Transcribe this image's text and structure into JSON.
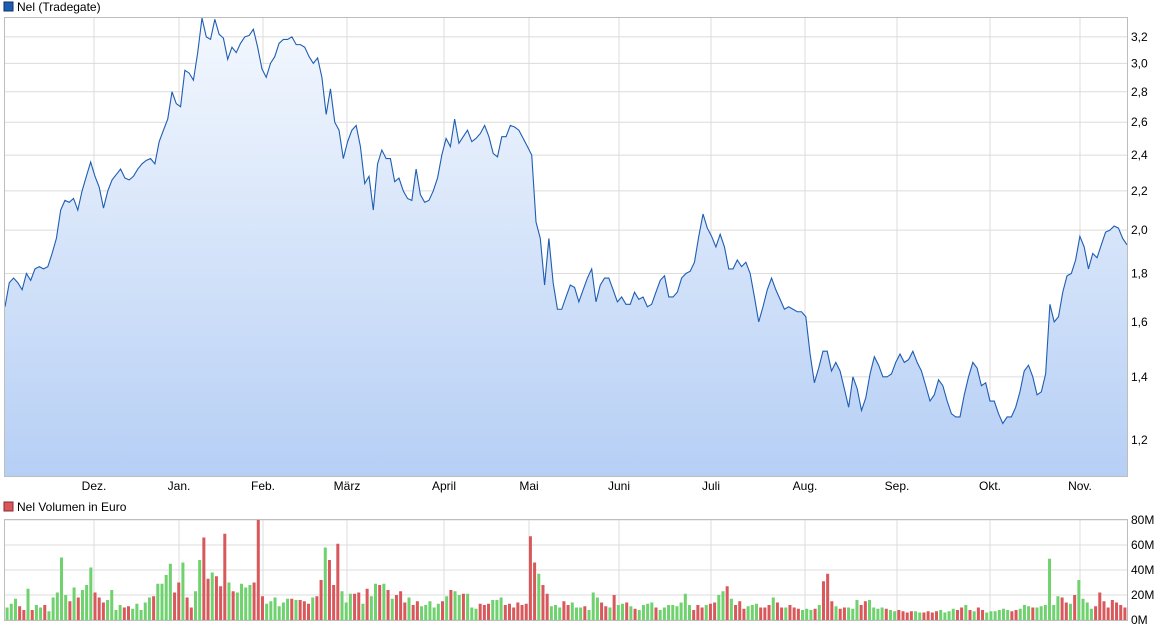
{
  "chart_data": [
    {
      "type": "area",
      "legend": "Nel (Tradegate)",
      "x_ticks": [
        "Dez.",
        "Jan.",
        "Feb.",
        "März",
        "April",
        "Mai",
        "Juni",
        "Juli",
        "Aug.",
        "Sep.",
        "Okt.",
        "Nov."
      ],
      "y_ticks": [
        "1,2",
        "1,4",
        "1,6",
        "1,8",
        "2,0",
        "2,2",
        "2,4",
        "2,6",
        "2,8",
        "3,0",
        "3,2"
      ],
      "y_scale": "log",
      "ylim": [
        1.1,
        3.35
      ],
      "grid": true,
      "line_color": "#1f5db3",
      "fill_top_color": "#f4f8fe",
      "fill_bottom_color": "#b6cff5",
      "series": [
        {
          "values": [
            1.66,
            1.76,
            1.78,
            1.76,
            1.73,
            1.8,
            1.77,
            1.82,
            1.83,
            1.82,
            1.83,
            1.89,
            1.96,
            2.1,
            2.15,
            2.14,
            2.16,
            2.1,
            2.2,
            2.28,
            2.36,
            2.28,
            2.22,
            2.11,
            2.2,
            2.26,
            2.29,
            2.32,
            2.27,
            2.26,
            2.28,
            2.32,
            2.35,
            2.37,
            2.38,
            2.35,
            2.48,
            2.55,
            2.62,
            2.8,
            2.72,
            2.7,
            2.95,
            2.93,
            2.88,
            3.08,
            3.35,
            3.2,
            3.18,
            3.34,
            3.22,
            3.19,
            3.03,
            3.12,
            3.08,
            3.15,
            3.2,
            3.21,
            3.26,
            3.12,
            2.96,
            2.9,
            3.0,
            3.05,
            3.15,
            3.18,
            3.18,
            3.2,
            3.14,
            3.14,
            3.12,
            3.05,
            3.0,
            3.04,
            2.9,
            2.65,
            2.82,
            2.6,
            2.55,
            2.38,
            2.48,
            2.55,
            2.58,
            2.45,
            2.24,
            2.28,
            2.1,
            2.35,
            2.43,
            2.38,
            2.38,
            2.25,
            2.27,
            2.2,
            2.16,
            2.15,
            2.32,
            2.18,
            2.14,
            2.15,
            2.2,
            2.27,
            2.4,
            2.5,
            2.45,
            2.62,
            2.47,
            2.51,
            2.55,
            2.48,
            2.5,
            2.53,
            2.58,
            2.51,
            2.41,
            2.39,
            2.51,
            2.51,
            2.58,
            2.57,
            2.55,
            2.5,
            2.45,
            2.4,
            2.04,
            1.96,
            1.75,
            1.96,
            1.76,
            1.65,
            1.65,
            1.7,
            1.75,
            1.74,
            1.68,
            1.73,
            1.78,
            1.82,
            1.68,
            1.75,
            1.78,
            1.78,
            1.73,
            1.68,
            1.7,
            1.67,
            1.67,
            1.72,
            1.69,
            1.7,
            1.66,
            1.67,
            1.72,
            1.77,
            1.79,
            1.7,
            1.7,
            1.72,
            1.78,
            1.8,
            1.81,
            1.85,
            1.97,
            2.08,
            2.01,
            1.97,
            1.92,
            1.98,
            1.92,
            1.82,
            1.82,
            1.86,
            1.83,
            1.85,
            1.8,
            1.7,
            1.6,
            1.66,
            1.73,
            1.78,
            1.73,
            1.69,
            1.65,
            1.66,
            1.65,
            1.64,
            1.64,
            1.62,
            1.48,
            1.38,
            1.43,
            1.49,
            1.49,
            1.42,
            1.45,
            1.42,
            1.36,
            1.3,
            1.4,
            1.36,
            1.29,
            1.33,
            1.41,
            1.47,
            1.44,
            1.4,
            1.4,
            1.41,
            1.45,
            1.48,
            1.45,
            1.46,
            1.49,
            1.45,
            1.42,
            1.37,
            1.32,
            1.34,
            1.39,
            1.37,
            1.32,
            1.28,
            1.27,
            1.27,
            1.34,
            1.4,
            1.45,
            1.43,
            1.37,
            1.38,
            1.32,
            1.32,
            1.28,
            1.25,
            1.27,
            1.27,
            1.3,
            1.35,
            1.42,
            1.44,
            1.4,
            1.34,
            1.35,
            1.41,
            1.67,
            1.6,
            1.62,
            1.72,
            1.79,
            1.8,
            1.86,
            1.97,
            1.92,
            1.82,
            1.89,
            1.87,
            1.93,
            1.99,
            2.0,
            2.02,
            2.01,
            1.96,
            1.93
          ]
        }
      ]
    },
    {
      "type": "bar",
      "legend": "Nel Volumen in Euro",
      "y_ticks": [
        "0M",
        "20M",
        "40M",
        "60M",
        "80M"
      ],
      "ylim": [
        0,
        80
      ],
      "grid": true,
      "up_color": "#6fd26f",
      "down_color": "#d9585b",
      "legend_color": "#d9585b",
      "volumes": [
        10,
        13,
        17,
        11,
        8,
        25,
        8,
        12,
        10,
        12,
        7,
        18,
        22,
        50,
        20,
        15,
        26,
        18,
        24,
        28,
        42,
        22,
        18,
        14,
        16,
        24,
        8,
        12,
        10,
        11,
        9,
        13,
        8,
        14,
        18,
        19,
        29,
        29,
        36,
        45,
        22,
        30,
        46,
        18,
        10,
        23,
        48,
        66,
        33,
        38,
        35,
        27,
        69,
        30,
        23,
        22,
        29,
        26,
        28,
        30,
        80,
        19,
        13,
        15,
        18,
        11,
        14,
        17,
        17,
        16,
        16,
        15,
        13,
        18,
        19,
        32,
        58,
        48,
        28,
        61,
        23,
        14,
        21,
        21,
        22,
        13,
        25,
        19,
        29,
        28,
        29,
        24,
        17,
        20,
        23,
        14,
        18,
        12,
        15,
        11,
        12,
        15,
        10,
        13,
        15,
        19,
        24,
        23,
        20,
        21,
        21,
        10,
        9,
        13,
        12,
        13,
        16,
        16,
        18,
        12,
        13,
        10,
        14,
        12,
        13,
        67,
        46,
        37,
        28,
        21,
        11,
        12,
        10,
        15,
        12,
        14,
        10,
        10,
        11,
        8,
        22,
        18,
        14,
        11,
        10,
        20,
        12,
        13,
        14,
        11,
        9,
        8,
        12,
        13,
        14,
        10,
        8,
        10,
        12,
        12,
        11,
        14,
        21,
        12,
        8,
        12,
        10,
        12,
        13,
        14,
        20,
        23,
        27,
        17,
        12,
        15,
        9,
        11,
        12,
        13,
        10,
        10,
        12,
        18,
        14,
        10,
        10,
        12,
        10,
        9,
        8,
        9,
        8,
        9,
        12,
        31,
        37,
        15,
        11,
        9,
        10,
        10,
        9,
        16,
        12,
        15,
        16,
        10,
        9,
        10,
        9,
        8,
        7,
        8,
        7,
        6,
        7,
        7,
        6,
        6,
        7,
        6,
        7,
        8,
        6,
        7,
        9,
        8,
        10,
        12,
        8,
        7,
        10,
        8,
        6,
        7,
        7,
        8,
        9,
        8,
        7,
        8,
        9,
        12,
        11,
        10,
        10,
        11,
        12,
        49,
        12,
        19,
        18,
        14,
        13,
        20,
        32,
        17,
        14,
        9,
        11,
        22,
        15,
        10,
        16,
        14,
        12,
        10
      ]
    }
  ]
}
